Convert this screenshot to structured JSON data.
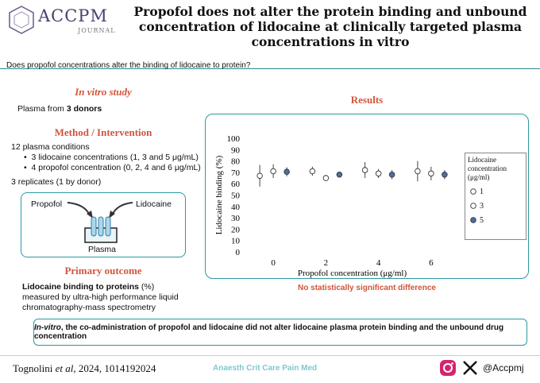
{
  "header": {
    "logo": "ACCPM",
    "logo_sub": "JOURNAL",
    "title": "Propofol does not alter the protein binding and unbound concentration of lidocaine at clinically targeted plasma concentrations in vitro"
  },
  "question": "Does propofol concentrations alter the binding of lidocaine to protein?",
  "left": {
    "study_heading": "In vitro study",
    "study_prefix": "Plasma from ",
    "study_bold": "3 donors",
    "method_heading": "Method / Intervention",
    "conditions": "12 plasma conditions",
    "bullets": [
      "3 lidocaine concentrations (1, 3 and 5 μg/mL)",
      "4 propofol concentration (0, 2, 4 and 6 μg/mL)"
    ],
    "replicates": "3 replicates (1 by donor)",
    "diagram": {
      "propofol": "Propofol",
      "lidocaine": "Lidocaine",
      "plasma": "Plasma"
    },
    "outcome_heading": "Primary outcome",
    "outcome_bold": "Lidocaine binding to proteins",
    "outcome_text": "(%) measured by ultra-high performance liquid chromatography-mass spectrometry"
  },
  "results_heading": "Results",
  "chart_data": {
    "type": "errorbar",
    "categories": [
      "0",
      "2",
      "4",
      "6"
    ],
    "x_label": "Propofol  concentration (μg/ml)",
    "y_label": "Lidocaine binding (%)",
    "legend_title": "Lidocaine concentration (μg/ml)",
    "ylim": [
      0,
      100
    ],
    "yticks": [
      0,
      10,
      20,
      30,
      40,
      50,
      60,
      70,
      80,
      90,
      100
    ],
    "series": [
      {
        "name": "1",
        "color": "#ffffff",
        "values": [
          67,
          71,
          72,
          71
        ],
        "errors": [
          9.5,
          4,
          7,
          9
        ]
      },
      {
        "name": "3",
        "color": "#ffffff",
        "values": [
          71,
          65,
          69,
          69
        ],
        "errors": [
          6,
          0,
          4,
          6
        ]
      },
      {
        "name": "5",
        "color": "#4a6fa5",
        "values": [
          70.5,
          68,
          68,
          68
        ],
        "errors": [
          4,
          2,
          4,
          4
        ]
      }
    ],
    "annotation": "No statistically significant difference"
  },
  "conclusion": {
    "italic": "In-vitro",
    "text": ", the co-administration of propofol and lidocaine did not alter lidocaine plasma protein binding and the unbound drug concentration"
  },
  "footer": {
    "author": "Tognolini",
    "etal": "et al",
    "rest": ", 2024, 1014192024",
    "journal": "Anaesth Crit Care Pain Med",
    "handle": "@Accpmj"
  }
}
